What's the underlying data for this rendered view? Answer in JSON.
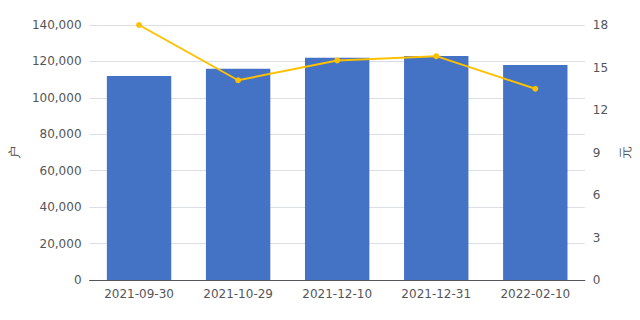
{
  "chart_data": {
    "type": "bar",
    "categories": [
      "2021-09-30",
      "2021-10-29",
      "2021-12-10",
      "2021-12-31",
      "2022-02-10"
    ],
    "series": [
      {
        "type": "bar",
        "color": "#4472C4",
        "values": [
          112000,
          116000,
          122000,
          123000,
          118000
        ]
      },
      {
        "type": "line",
        "axis": "y2",
        "color": "#FFC000",
        "marker": "circle",
        "values": [
          18.0,
          14.1,
          15.5,
          15.8,
          13.5
        ]
      }
    ],
    "ylabel": "户",
    "y2label": "元",
    "ylim": [
      0,
      140000
    ],
    "yticks": [
      0,
      {
        "value": 20000,
        "label": "20,000"
      },
      {
        "value": 40000,
        "label": "40,000"
      },
      {
        "value": 60000,
        "label": "60,000"
      },
      {
        "value": 80000,
        "label": "80,000"
      },
      {
        "value": 100000,
        "label": "100,000"
      },
      {
        "value": 120000,
        "label": "120,000"
      },
      {
        "value": 140000,
        "label": "140,000"
      }
    ],
    "y2lim": [
      0,
      18
    ],
    "y2ticks": [
      0,
      3,
      6,
      9,
      12,
      15,
      18
    ],
    "grid": true
  }
}
